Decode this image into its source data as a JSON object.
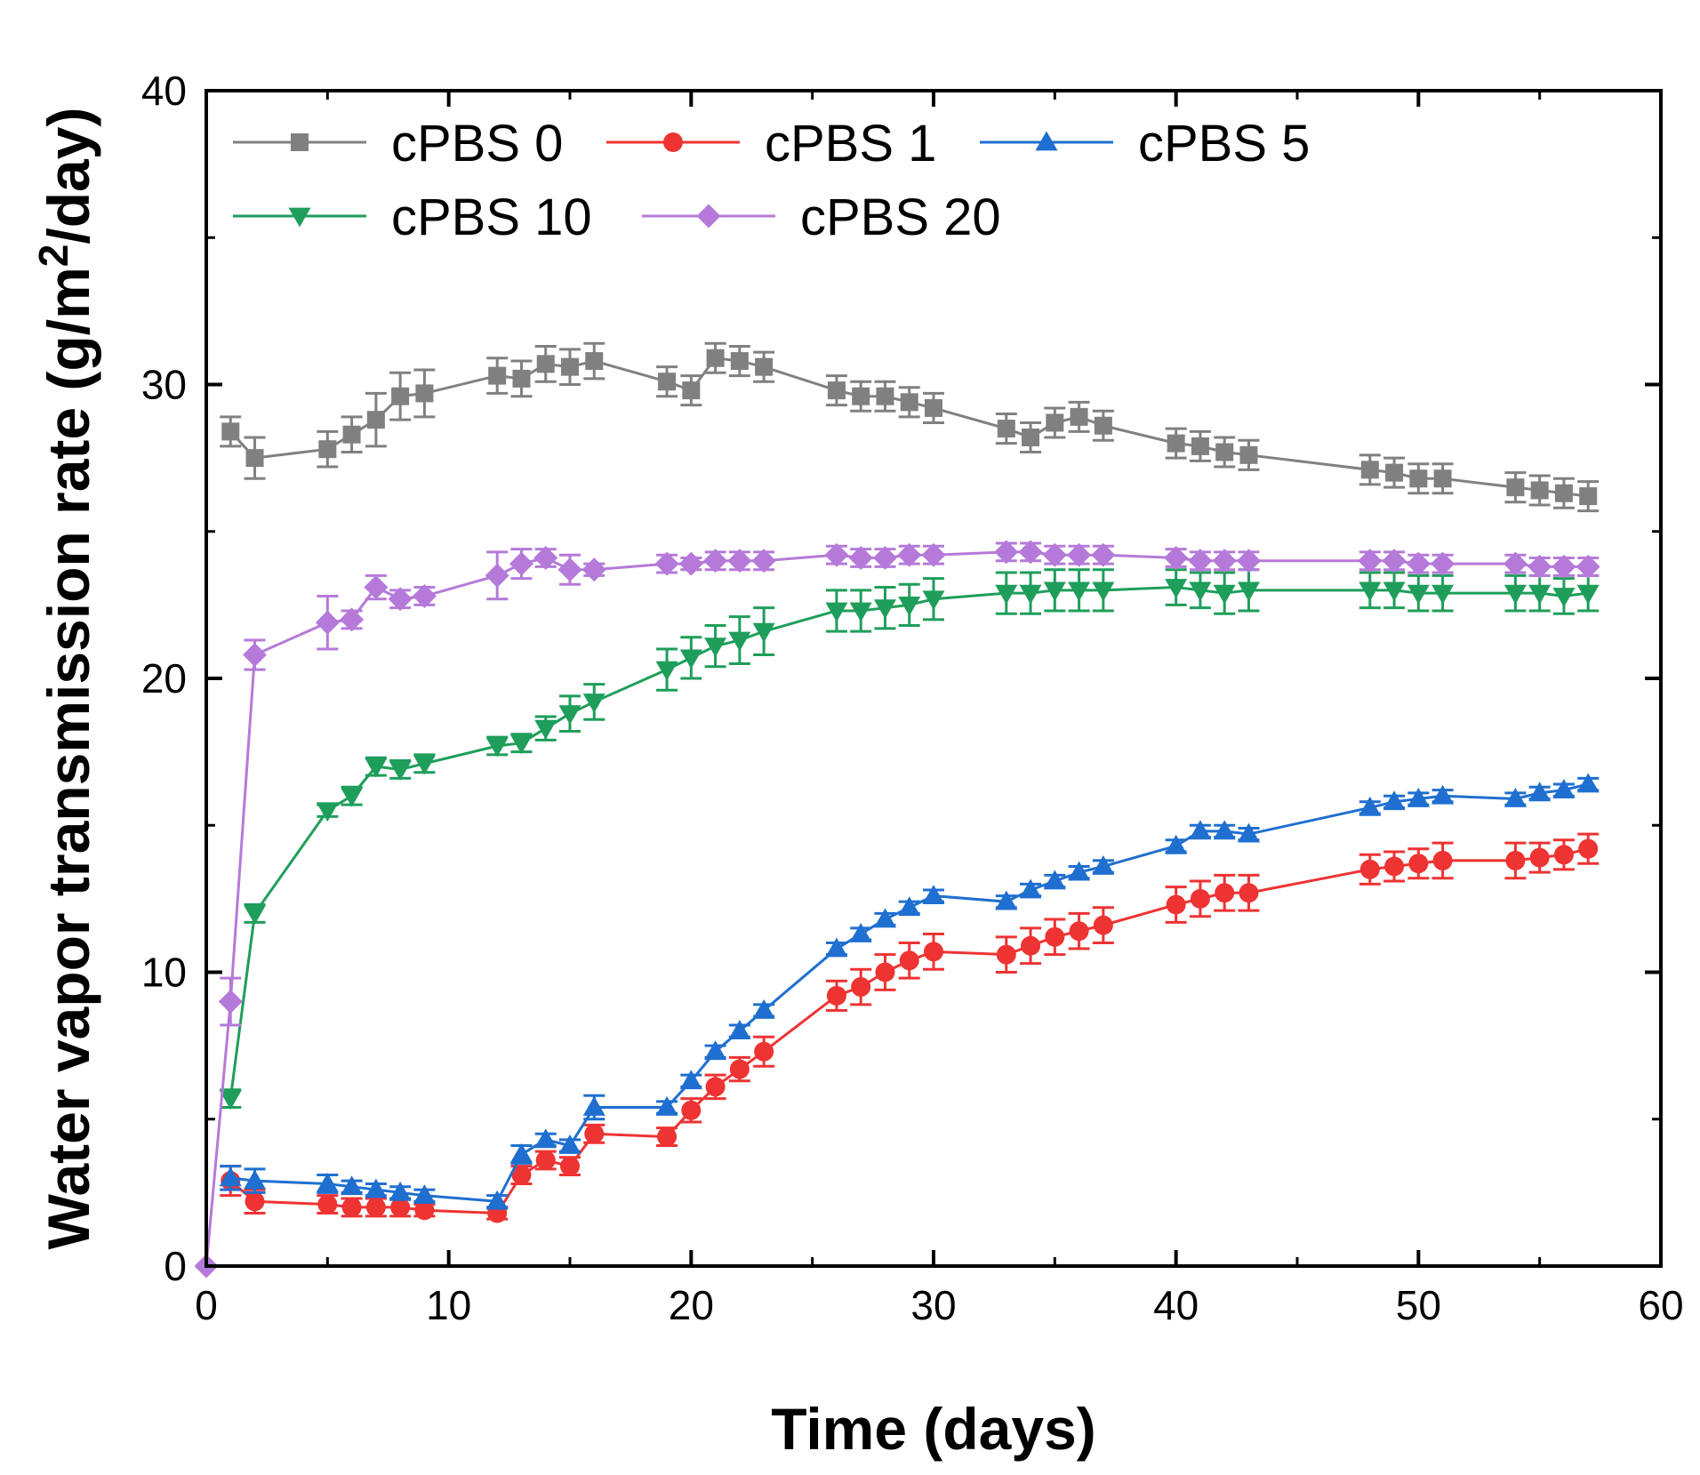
{
  "chart_data": {
    "type": "line",
    "xlabel": "Time (days)",
    "ylabel_main": "Water vapor transmission rate (g/m",
    "ylabel_sup": "2",
    "ylabel_tail": "/day)",
    "xlim": [
      0,
      60
    ],
    "ylim": [
      0,
      40
    ],
    "xticks": [
      "0",
      "10",
      "20",
      "30",
      "40",
      "50",
      "60"
    ],
    "yticks": [
      "0",
      "10",
      "20",
      "30",
      "40"
    ],
    "grid": false,
    "legend_position": "top-left",
    "series": [
      {
        "name": "cPBS 0",
        "color": "#808080",
        "marker": "square",
        "points": [
          [
            1,
            28.4,
            0.5
          ],
          [
            2,
            27.5,
            0.7
          ],
          [
            5,
            27.8,
            0.6
          ],
          [
            6,
            28.3,
            0.6
          ],
          [
            7,
            28.8,
            0.9
          ],
          [
            8,
            29.6,
            0.8
          ],
          [
            9,
            29.7,
            0.8
          ],
          [
            12,
            30.3,
            0.6
          ],
          [
            13,
            30.2,
            0.6
          ],
          [
            14,
            30.7,
            0.6
          ],
          [
            15,
            30.6,
            0.6
          ],
          [
            16,
            30.8,
            0.6
          ],
          [
            19,
            30.1,
            0.5
          ],
          [
            20,
            29.8,
            0.5
          ],
          [
            21,
            30.9,
            0.5
          ],
          [
            22,
            30.8,
            0.5
          ],
          [
            23,
            30.6,
            0.5
          ],
          [
            26,
            29.8,
            0.5
          ],
          [
            27,
            29.6,
            0.5
          ],
          [
            28,
            29.6,
            0.5
          ],
          [
            29,
            29.4,
            0.5
          ],
          [
            30,
            29.2,
            0.5
          ],
          [
            33,
            28.5,
            0.5
          ],
          [
            34,
            28.2,
            0.5
          ],
          [
            35,
            28.7,
            0.5
          ],
          [
            36,
            28.9,
            0.5
          ],
          [
            37,
            28.6,
            0.5
          ],
          [
            40,
            28.0,
            0.5
          ],
          [
            41,
            27.9,
            0.5
          ],
          [
            42,
            27.7,
            0.5
          ],
          [
            43,
            27.6,
            0.5
          ],
          [
            48,
            27.1,
            0.5
          ],
          [
            49,
            27.0,
            0.5
          ],
          [
            50,
            26.8,
            0.5
          ],
          [
            51,
            26.8,
            0.5
          ],
          [
            54,
            26.5,
            0.5
          ],
          [
            55,
            26.4,
            0.5
          ],
          [
            56,
            26.3,
            0.5
          ],
          [
            57,
            26.2,
            0.5
          ]
        ]
      },
      {
        "name": "cPBS 1",
        "color": "#ee3333",
        "marker": "circle",
        "points": [
          [
            1,
            2.9,
            0.5
          ],
          [
            2,
            2.2,
            0.4
          ],
          [
            5,
            2.1,
            0.3
          ],
          [
            6,
            2.0,
            0.3
          ],
          [
            7,
            2.0,
            0.3
          ],
          [
            8,
            2.0,
            0.3
          ],
          [
            9,
            1.9,
            0.2
          ],
          [
            12,
            1.8,
            0.2
          ],
          [
            13,
            3.1,
            0.3
          ],
          [
            14,
            3.6,
            0.3
          ],
          [
            15,
            3.4,
            0.3
          ],
          [
            16,
            4.5,
            0.3
          ],
          [
            19,
            4.4,
            0.3
          ],
          [
            20,
            5.3,
            0.4
          ],
          [
            21,
            6.1,
            0.4
          ],
          [
            22,
            6.7,
            0.4
          ],
          [
            23,
            7.3,
            0.5
          ],
          [
            26,
            9.2,
            0.5
          ],
          [
            27,
            9.5,
            0.6
          ],
          [
            28,
            10.0,
            0.6
          ],
          [
            29,
            10.4,
            0.6
          ],
          [
            30,
            10.7,
            0.6
          ],
          [
            33,
            10.6,
            0.6
          ],
          [
            34,
            10.9,
            0.6
          ],
          [
            35,
            11.2,
            0.6
          ],
          [
            36,
            11.4,
            0.6
          ],
          [
            37,
            11.6,
            0.6
          ],
          [
            40,
            12.3,
            0.6
          ],
          [
            41,
            12.5,
            0.6
          ],
          [
            42,
            12.7,
            0.6
          ],
          [
            43,
            12.7,
            0.6
          ],
          [
            48,
            13.5,
            0.5
          ],
          [
            49,
            13.6,
            0.5
          ],
          [
            50,
            13.7,
            0.5
          ],
          [
            51,
            13.8,
            0.6
          ],
          [
            54,
            13.8,
            0.6
          ],
          [
            55,
            13.9,
            0.5
          ],
          [
            56,
            14.0,
            0.5
          ],
          [
            57,
            14.2,
            0.5
          ]
        ]
      },
      {
        "name": "cPBS 5",
        "color": "#1f6fd0",
        "marker": "triangle-up",
        "points": [
          [
            1,
            3.0,
            0.4
          ],
          [
            2,
            2.9,
            0.4
          ],
          [
            5,
            2.8,
            0.3
          ],
          [
            6,
            2.7,
            0.2
          ],
          [
            7,
            2.6,
            0.2
          ],
          [
            8,
            2.5,
            0.2
          ],
          [
            9,
            2.4,
            0.2
          ],
          [
            12,
            2.2,
            0.2
          ],
          [
            13,
            3.8,
            0.3
          ],
          [
            14,
            4.3,
            0.2
          ],
          [
            15,
            4.1,
            0.2
          ],
          [
            16,
            5.4,
            0.4
          ],
          [
            19,
            5.4,
            0.2
          ],
          [
            20,
            6.3,
            0.2
          ],
          [
            21,
            7.3,
            0.2
          ],
          [
            22,
            8.0,
            0.2
          ],
          [
            23,
            8.7,
            0.2
          ],
          [
            26,
            10.8,
            0.2
          ],
          [
            27,
            11.3,
            0.2
          ],
          [
            28,
            11.8,
            0.2
          ],
          [
            29,
            12.2,
            0.2
          ],
          [
            30,
            12.6,
            0.2
          ],
          [
            33,
            12.4,
            0.2
          ],
          [
            34,
            12.8,
            0.2
          ],
          [
            35,
            13.1,
            0.2
          ],
          [
            36,
            13.4,
            0.2
          ],
          [
            37,
            13.6,
            0.2
          ],
          [
            40,
            14.3,
            0.2
          ],
          [
            41,
            14.8,
            0.2
          ],
          [
            42,
            14.8,
            0.2
          ],
          [
            43,
            14.7,
            0.2
          ],
          [
            48,
            15.6,
            0.2
          ],
          [
            49,
            15.8,
            0.2
          ],
          [
            50,
            15.9,
            0.2
          ],
          [
            51,
            16.0,
            0.2
          ],
          [
            54,
            15.9,
            0.2
          ],
          [
            55,
            16.1,
            0.2
          ],
          [
            56,
            16.2,
            0.2
          ],
          [
            57,
            16.4,
            0.2
          ]
        ]
      },
      {
        "name": "cPBS 10",
        "color": "#1e9e5a",
        "marker": "triangle-down",
        "points": [
          [
            1,
            5.7,
            0.3
          ],
          [
            2,
            12.0,
            0.3
          ],
          [
            5,
            15.5,
            0.2
          ],
          [
            6,
            16.0,
            0.3
          ],
          [
            7,
            17.0,
            0.3
          ],
          [
            8,
            16.9,
            0.3
          ],
          [
            9,
            17.1,
            0.3
          ],
          [
            12,
            17.7,
            0.3
          ],
          [
            13,
            17.8,
            0.3
          ],
          [
            14,
            18.3,
            0.4
          ],
          [
            15,
            18.8,
            0.6
          ],
          [
            16,
            19.2,
            0.6
          ],
          [
            19,
            20.3,
            0.7
          ],
          [
            20,
            20.7,
            0.7
          ],
          [
            21,
            21.1,
            0.7
          ],
          [
            22,
            21.3,
            0.8
          ],
          [
            23,
            21.6,
            0.8
          ],
          [
            26,
            22.3,
            0.7
          ],
          [
            27,
            22.3,
            0.7
          ],
          [
            28,
            22.4,
            0.7
          ],
          [
            29,
            22.5,
            0.7
          ],
          [
            30,
            22.7,
            0.7
          ],
          [
            33,
            22.9,
            0.7
          ],
          [
            34,
            22.9,
            0.7
          ],
          [
            35,
            23.0,
            0.7
          ],
          [
            36,
            23.0,
            0.7
          ],
          [
            37,
            23.0,
            0.7
          ],
          [
            40,
            23.1,
            0.6
          ],
          [
            41,
            23.0,
            0.6
          ],
          [
            42,
            22.9,
            0.7
          ],
          [
            43,
            23.0,
            0.7
          ],
          [
            48,
            23.0,
            0.6
          ],
          [
            49,
            23.0,
            0.6
          ],
          [
            50,
            22.9,
            0.6
          ],
          [
            51,
            22.9,
            0.6
          ],
          [
            54,
            22.9,
            0.6
          ],
          [
            55,
            22.9,
            0.6
          ],
          [
            56,
            22.8,
            0.6
          ],
          [
            57,
            22.9,
            0.6
          ]
        ]
      },
      {
        "name": "cPBS 20",
        "color": "#b57ad9",
        "marker": "diamond",
        "points": [
          [
            0,
            0,
            0
          ],
          [
            1,
            9.0,
            0.8
          ],
          [
            2,
            20.8,
            0.5
          ],
          [
            5,
            21.9,
            0.9
          ],
          [
            6,
            22.0,
            0.3
          ],
          [
            7,
            23.1,
            0.4
          ],
          [
            8,
            22.7,
            0.3
          ],
          [
            9,
            22.8,
            0.3
          ],
          [
            12,
            23.5,
            0.8
          ],
          [
            13,
            23.9,
            0.5
          ],
          [
            14,
            24.1,
            0.3
          ],
          [
            15,
            23.7,
            0.5
          ],
          [
            16,
            23.7,
            0.2
          ],
          [
            19,
            23.9,
            0.3
          ],
          [
            20,
            23.9,
            0.2
          ],
          [
            21,
            24.0,
            0.3
          ],
          [
            22,
            24.0,
            0.3
          ],
          [
            23,
            24.0,
            0.3
          ],
          [
            26,
            24.2,
            0.3
          ],
          [
            27,
            24.1,
            0.3
          ],
          [
            28,
            24.1,
            0.3
          ],
          [
            29,
            24.2,
            0.3
          ],
          [
            30,
            24.2,
            0.3
          ],
          [
            33,
            24.3,
            0.3
          ],
          [
            34,
            24.3,
            0.3
          ],
          [
            35,
            24.2,
            0.3
          ],
          [
            36,
            24.2,
            0.3
          ],
          [
            37,
            24.2,
            0.3
          ],
          [
            40,
            24.1,
            0.3
          ],
          [
            41,
            24.0,
            0.3
          ],
          [
            42,
            24.0,
            0.3
          ],
          [
            43,
            24.0,
            0.3
          ],
          [
            48,
            24.0,
            0.3
          ],
          [
            49,
            24.0,
            0.3
          ],
          [
            50,
            23.9,
            0.3
          ],
          [
            51,
            23.9,
            0.3
          ],
          [
            54,
            23.9,
            0.3
          ],
          [
            55,
            23.8,
            0.3
          ],
          [
            56,
            23.8,
            0.3
          ],
          [
            57,
            23.8,
            0.3
          ]
        ]
      }
    ]
  }
}
